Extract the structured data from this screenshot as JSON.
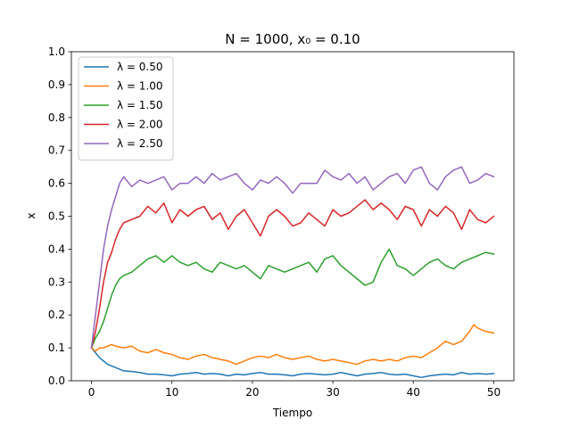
{
  "chart_data": {
    "type": "line",
    "title": "N = 1000, x₀ = 0.10",
    "xlabel": "Tiempo",
    "ylabel": "x",
    "xlim": [
      -2.5,
      52.5
    ],
    "ylim": [
      0.0,
      1.0
    ],
    "xticks": [
      "0",
      "10",
      "20",
      "30",
      "40",
      "50"
    ],
    "xtick_values": [
      0,
      10,
      20,
      30,
      40,
      50
    ],
    "yticks": [
      "0.0",
      "0.1",
      "0.2",
      "0.3",
      "0.4",
      "0.5",
      "0.6",
      "0.7",
      "0.8",
      "0.9",
      "1.0"
    ],
    "ytick_values": [
      0.0,
      0.1,
      0.2,
      0.3,
      0.4,
      0.5,
      0.6,
      0.7,
      0.8,
      0.9,
      1.0
    ],
    "grid": false,
    "legend_position": "top-left",
    "series": [
      {
        "name": "λ = 0.50",
        "color": "#1f77b4",
        "x": [
          0,
          0.5,
          1,
          1.5,
          2,
          2.5,
          3,
          3.5,
          4,
          5,
          6,
          7,
          8,
          9,
          10,
          11,
          12,
          13,
          14,
          15,
          16,
          17,
          18,
          19,
          20,
          21,
          22,
          23,
          24,
          25,
          26,
          27,
          28,
          29,
          30,
          31,
          32,
          33,
          34,
          35,
          36,
          37,
          38,
          39,
          40,
          41,
          42,
          43,
          44,
          45,
          46,
          47,
          48,
          49,
          50
        ],
        "y": [
          0.1,
          0.085,
          0.07,
          0.06,
          0.05,
          0.045,
          0.04,
          0.035,
          0.03,
          0.028,
          0.025,
          0.02,
          0.02,
          0.018,
          0.015,
          0.02,
          0.022,
          0.025,
          0.02,
          0.022,
          0.02,
          0.015,
          0.02,
          0.018,
          0.022,
          0.025,
          0.02,
          0.02,
          0.018,
          0.015,
          0.02,
          0.022,
          0.02,
          0.018,
          0.02,
          0.025,
          0.02,
          0.015,
          0.02,
          0.022,
          0.025,
          0.02,
          0.018,
          0.02,
          0.015,
          0.01,
          0.015,
          0.018,
          0.02,
          0.018,
          0.025,
          0.02,
          0.022,
          0.02,
          0.022
        ]
      },
      {
        "name": "λ = 1.00",
        "color": "#ff7f0e",
        "x": [
          0,
          0.5,
          1,
          1.5,
          2,
          2.5,
          3,
          4,
          5,
          6,
          7,
          8,
          9,
          10,
          11,
          12,
          13,
          14,
          15,
          16,
          17,
          18,
          19,
          20,
          21,
          22,
          23,
          24,
          25,
          26,
          27,
          28,
          29,
          30,
          31,
          32,
          33,
          34,
          35,
          36,
          37,
          38,
          39,
          40,
          41,
          42,
          43,
          44,
          45,
          46,
          47,
          47.5,
          48,
          49,
          50
        ],
        "y": [
          0.1,
          0.09,
          0.1,
          0.1,
          0.105,
          0.11,
          0.105,
          0.1,
          0.105,
          0.09,
          0.085,
          0.095,
          0.085,
          0.08,
          0.07,
          0.065,
          0.075,
          0.08,
          0.07,
          0.065,
          0.06,
          0.05,
          0.06,
          0.07,
          0.075,
          0.07,
          0.08,
          0.07,
          0.065,
          0.07,
          0.075,
          0.065,
          0.06,
          0.065,
          0.06,
          0.055,
          0.05,
          0.06,
          0.065,
          0.06,
          0.065,
          0.06,
          0.07,
          0.075,
          0.07,
          0.085,
          0.1,
          0.12,
          0.11,
          0.12,
          0.15,
          0.17,
          0.16,
          0.15,
          0.145
        ]
      },
      {
        "name": "λ = 1.50",
        "color": "#2ca02c",
        "x": [
          0,
          0.5,
          1,
          1.5,
          2,
          2.5,
          3,
          3.5,
          4,
          5,
          6,
          7,
          8,
          9,
          10,
          11,
          12,
          13,
          14,
          15,
          16,
          17,
          18,
          19,
          20,
          21,
          22,
          23,
          24,
          25,
          26,
          27,
          28,
          29,
          30,
          31,
          32,
          33,
          34,
          35,
          36,
          37,
          38,
          39,
          40,
          41,
          42,
          43,
          44,
          45,
          46,
          47,
          48,
          49,
          50
        ],
        "y": [
          0.1,
          0.13,
          0.15,
          0.18,
          0.22,
          0.26,
          0.29,
          0.31,
          0.32,
          0.33,
          0.35,
          0.37,
          0.38,
          0.36,
          0.38,
          0.36,
          0.35,
          0.36,
          0.34,
          0.33,
          0.36,
          0.35,
          0.34,
          0.35,
          0.33,
          0.31,
          0.35,
          0.34,
          0.33,
          0.34,
          0.35,
          0.36,
          0.33,
          0.37,
          0.38,
          0.35,
          0.33,
          0.31,
          0.29,
          0.3,
          0.36,
          0.4,
          0.35,
          0.34,
          0.32,
          0.34,
          0.36,
          0.37,
          0.35,
          0.34,
          0.36,
          0.37,
          0.38,
          0.39,
          0.385
        ]
      },
      {
        "name": "λ = 2.00",
        "color": "#d62728",
        "x": [
          0,
          0.5,
          1,
          1.5,
          2,
          2.5,
          3,
          3.5,
          4,
          5,
          6,
          7,
          8,
          9,
          10,
          11,
          12,
          13,
          14,
          15,
          16,
          17,
          18,
          19,
          20,
          21,
          22,
          23,
          24,
          25,
          26,
          27,
          28,
          29,
          30,
          31,
          32,
          33,
          34,
          35,
          36,
          37,
          38,
          39,
          40,
          41,
          42,
          43,
          44,
          45,
          46,
          47,
          48,
          49,
          50
        ],
        "y": [
          0.1,
          0.15,
          0.22,
          0.3,
          0.36,
          0.39,
          0.43,
          0.46,
          0.48,
          0.49,
          0.5,
          0.53,
          0.51,
          0.54,
          0.48,
          0.52,
          0.5,
          0.52,
          0.53,
          0.49,
          0.51,
          0.46,
          0.5,
          0.52,
          0.48,
          0.44,
          0.5,
          0.52,
          0.5,
          0.47,
          0.48,
          0.51,
          0.49,
          0.47,
          0.52,
          0.5,
          0.51,
          0.53,
          0.55,
          0.52,
          0.54,
          0.52,
          0.49,
          0.53,
          0.52,
          0.47,
          0.52,
          0.5,
          0.53,
          0.51,
          0.46,
          0.52,
          0.49,
          0.48,
          0.5
        ]
      },
      {
        "name": "λ = 2.50",
        "color": "#9467bd",
        "x": [
          0,
          0.5,
          1,
          1.5,
          2,
          2.5,
          3,
          3.5,
          4,
          5,
          6,
          7,
          8,
          9,
          10,
          11,
          12,
          13,
          14,
          15,
          16,
          17,
          18,
          19,
          20,
          21,
          22,
          23,
          24,
          25,
          26,
          27,
          28,
          29,
          30,
          31,
          32,
          33,
          34,
          35,
          36,
          37,
          38,
          39,
          40,
          41,
          42,
          43,
          44,
          45,
          46,
          47,
          48,
          49,
          50
        ],
        "y": [
          0.1,
          0.2,
          0.3,
          0.4,
          0.47,
          0.52,
          0.56,
          0.6,
          0.62,
          0.59,
          0.61,
          0.6,
          0.61,
          0.62,
          0.58,
          0.6,
          0.6,
          0.62,
          0.6,
          0.63,
          0.61,
          0.62,
          0.63,
          0.6,
          0.58,
          0.61,
          0.6,
          0.62,
          0.6,
          0.57,
          0.6,
          0.6,
          0.6,
          0.64,
          0.62,
          0.61,
          0.63,
          0.6,
          0.62,
          0.58,
          0.6,
          0.62,
          0.63,
          0.6,
          0.64,
          0.65,
          0.6,
          0.58,
          0.62,
          0.64,
          0.65,
          0.6,
          0.61,
          0.63,
          0.62
        ]
      }
    ]
  }
}
